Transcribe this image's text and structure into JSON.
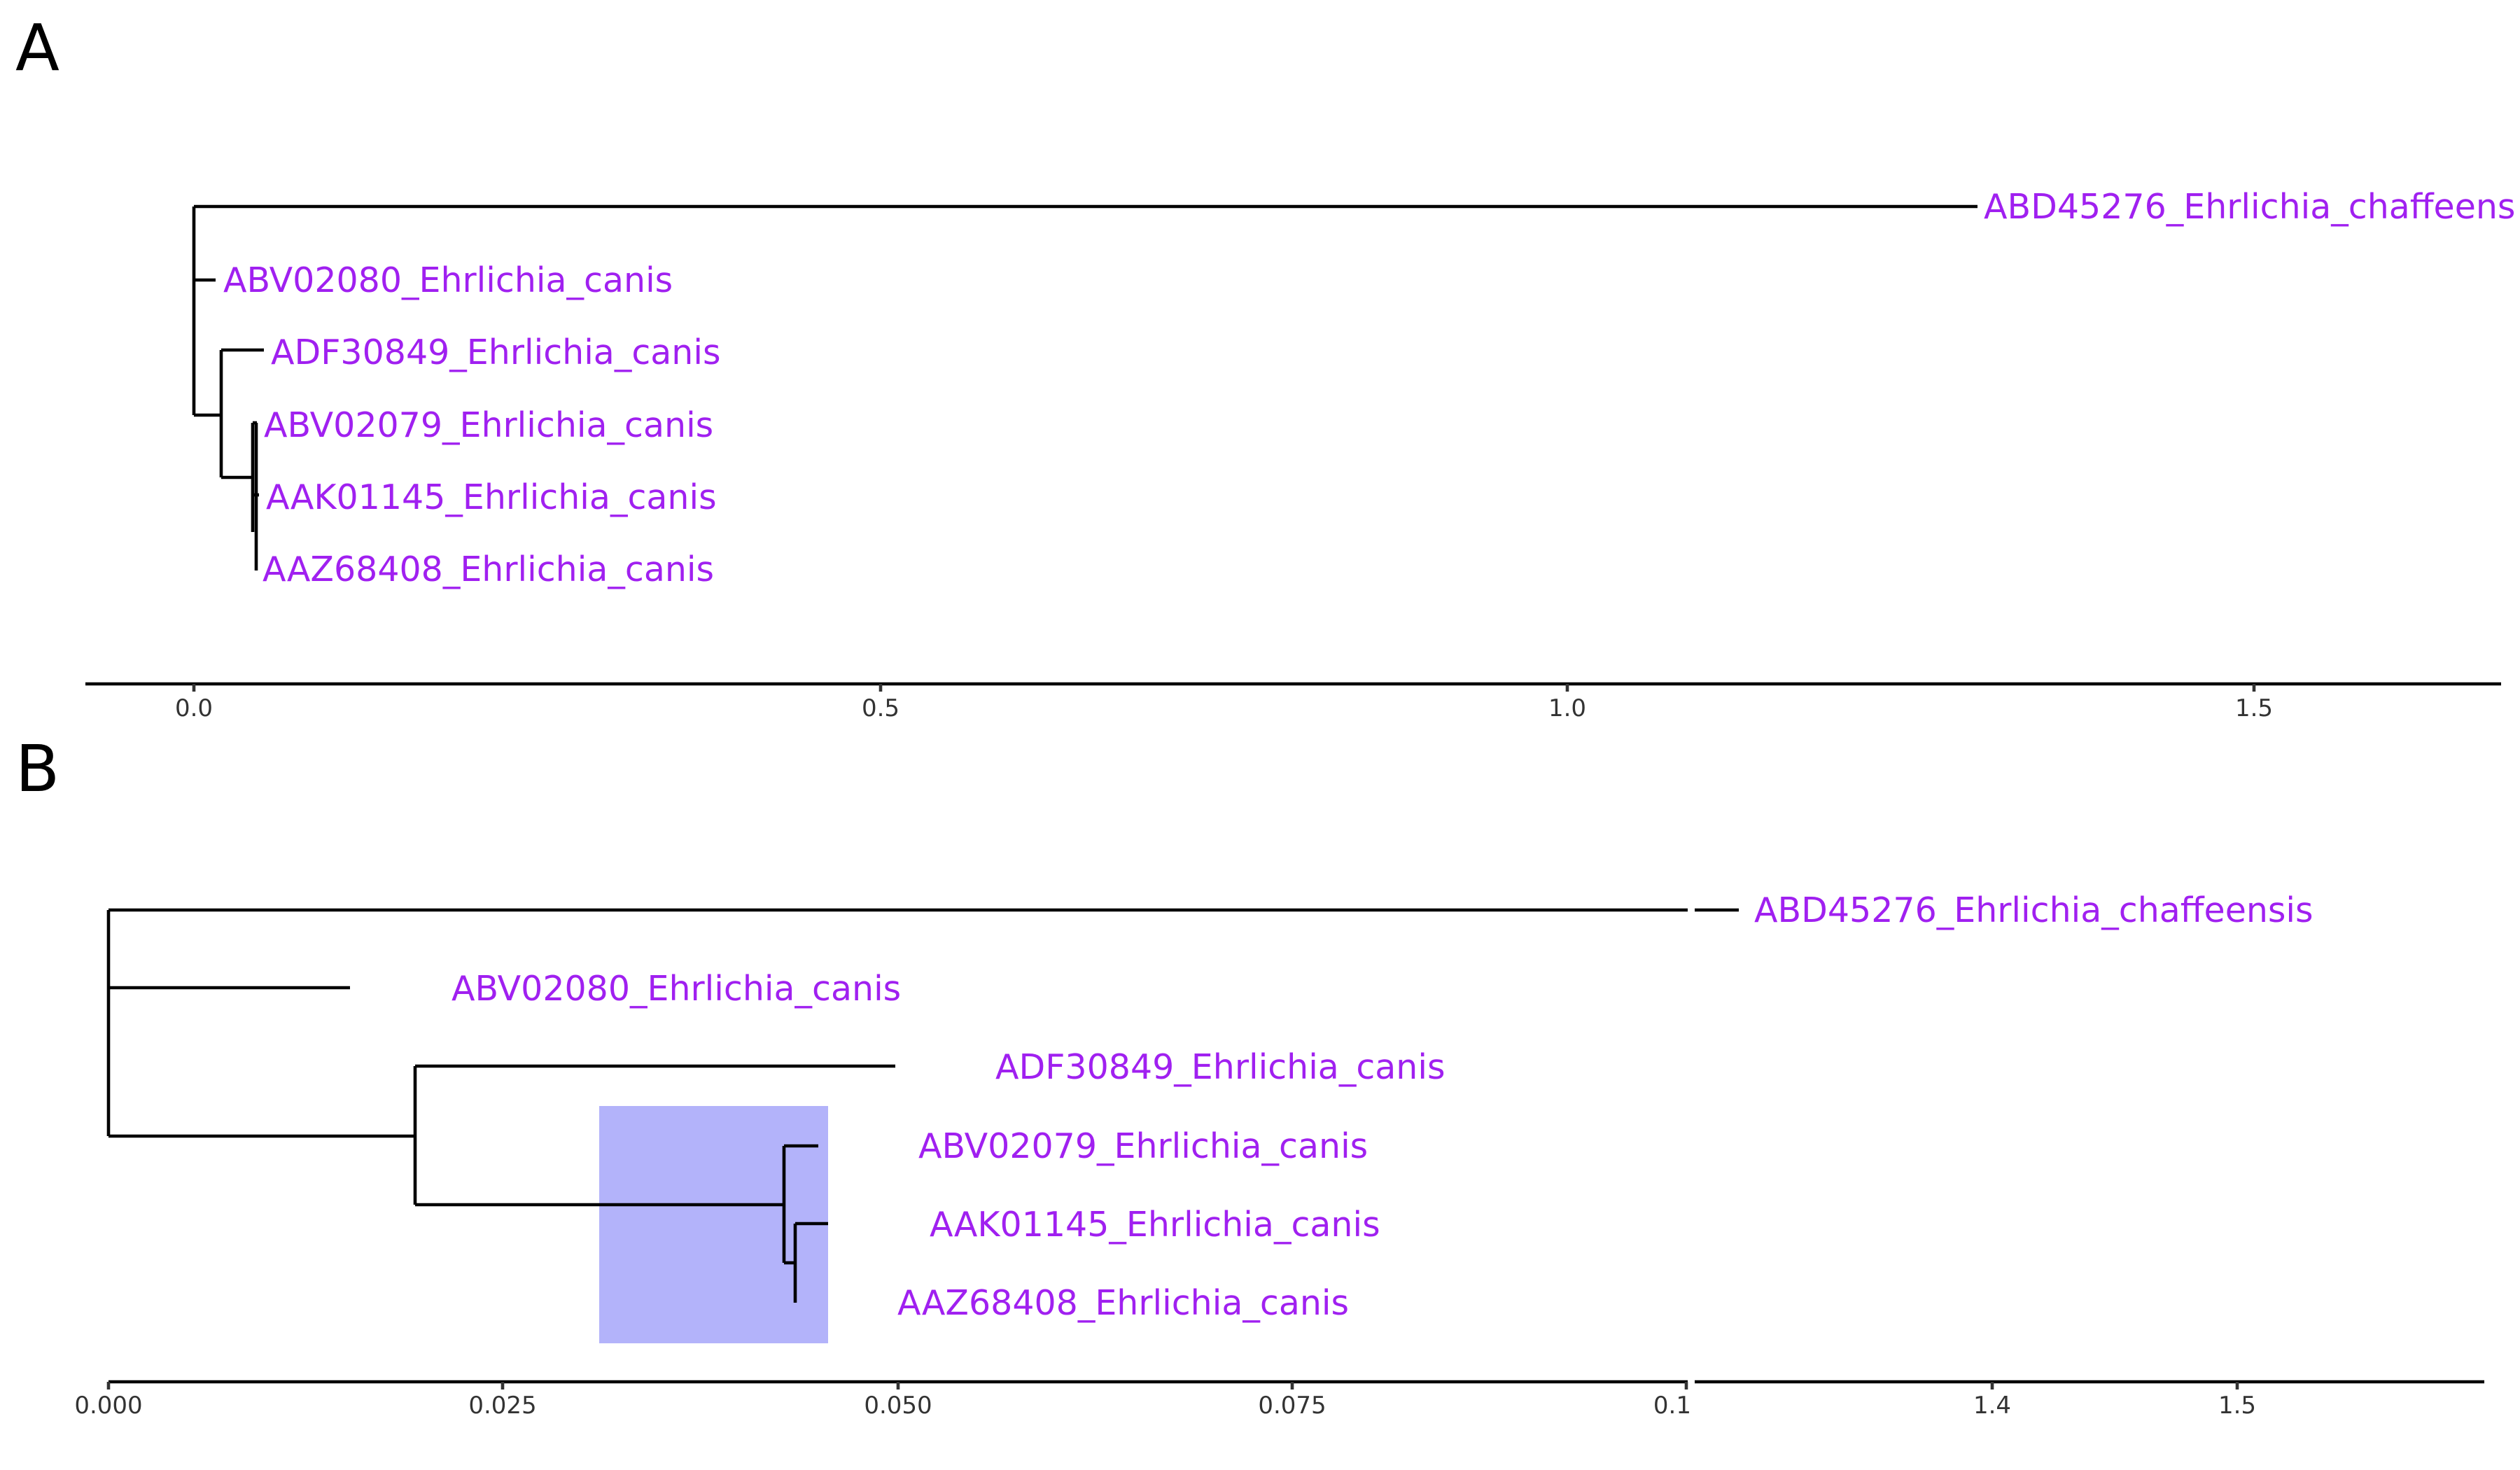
{
  "panels": {
    "a": {
      "letter": "A",
      "tip_labels": [
        "ABD45276_Ehrlichia_chaffeens",
        "ABV02080_Ehrlichia_canis",
        "ADF30849_Ehrlichia_canis",
        "ABV02079_Ehrlichia_canis",
        "AAK01145_Ehrlichia_canis",
        "AAZ68408_Ehrlichia_canis"
      ],
      "ticks": [
        "0.0",
        "0.5",
        "1.0",
        "1.5"
      ]
    },
    "b": {
      "letter": "B",
      "tip_labels": [
        "ABD45276_Ehrlichia_chaffeensis",
        "ABV02080_Ehrlichia_canis",
        "ADF30849_Ehrlichia_canis",
        "ABV02079_Ehrlichia_canis",
        "AAK01145_Ehrlichia_canis",
        "AAZ68408_Ehrlichia_canis"
      ],
      "ticks_left": [
        "0.000",
        "0.025",
        "0.050",
        "0.075",
        "0.1"
      ],
      "ticks_right": [
        "1.4",
        "1.5"
      ]
    }
  },
  "colors": {
    "tip_label": "#a020f0",
    "branch": "#000000",
    "highlight": "#b3b3fa",
    "axis": "#000000",
    "tick_text": "#333333"
  },
  "chart_data": {
    "type": "phylogenetic-tree",
    "taxa": [
      "ABD45276_Ehrlichia_chaffeensis",
      "ABV02080_Ehrlichia_canis",
      "ADF30849_Ehrlichia_canis",
      "ABV02079_Ehrlichia_canis",
      "AAK01145_Ehrlichia_canis",
      "AAZ68408_Ehrlichia_canis"
    ],
    "tip_depths": [
      1.297,
      0.015,
      0.05,
      0.045,
      0.046,
      0.044
    ],
    "internal_node_depths": {
      "canis_clade": 0.0,
      "adf_clade": 0.0195,
      "abv02079_aak_aaz_clade": 0.043,
      "aak_aaz_clade": 0.0437
    },
    "panel_b_axis_break": {
      "left_range": [
        0,
        0.1
      ],
      "right_range": [
        1.3,
        1.67
      ]
    },
    "highlighted_range": [
      0.0312,
      0.0457
    ]
  }
}
